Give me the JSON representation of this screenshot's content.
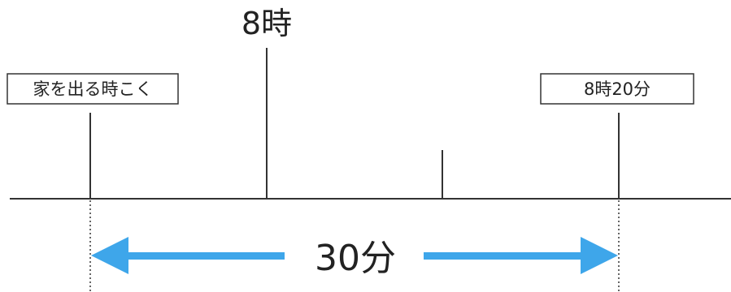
{
  "top_label": "8時",
  "left_box_label": "家を出る時こく",
  "right_box_label": "8時20分",
  "duration_label": "30分",
  "colors": {
    "line": "#333333",
    "arrow": "#3ea6ea",
    "text": "#222222",
    "box_border": "#333333",
    "background": "#ffffff"
  }
}
